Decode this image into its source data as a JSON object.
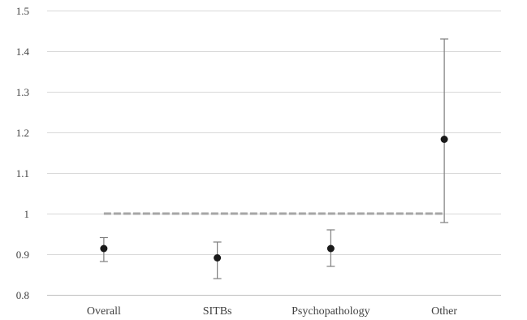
{
  "chart_data": {
    "type": "scatter",
    "title": "",
    "xlabel": "",
    "ylabel": "",
    "categories": [
      "Overall",
      "SITBs",
      "Psychopathology",
      "Other"
    ],
    "series": [
      {
        "values": [
          0.914,
          0.891,
          0.914,
          1.183
        ],
        "ci_lower": [
          0.882,
          0.84,
          0.87,
          0.978
        ],
        "ci_upper": [
          0.941,
          0.93,
          0.96,
          1.43
        ],
        "marker_color": "#1a1a1a",
        "error_bar_color": "#7f7f7f"
      }
    ],
    "reference_line": {
      "y": 1,
      "style": "dashed",
      "color": "#a6a6a6"
    },
    "ylim": [
      0.8,
      1.5
    ],
    "yticks": [
      "0.8",
      "0.9",
      "1",
      "1.1",
      "1.2",
      "1.3",
      "1.4",
      "1.5"
    ],
    "grid": true,
    "legend": "none"
  }
}
